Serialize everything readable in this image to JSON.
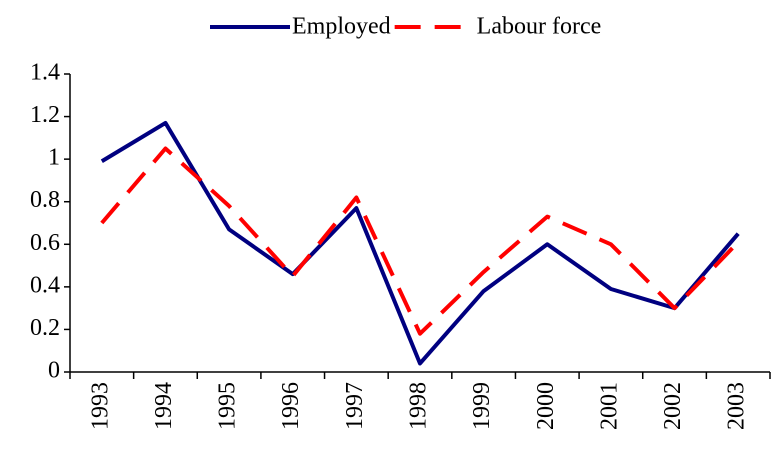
{
  "chart_data": {
    "type": "line",
    "categories": [
      "1993",
      "1994",
      "1995",
      "1996",
      "1997",
      "1998",
      "1999",
      "2000",
      "2001",
      "2002",
      "2003"
    ],
    "series": [
      {
        "name": "Employed",
        "color": "#000080",
        "dash": false,
        "values": [
          0.99,
          1.17,
          0.67,
          0.46,
          0.77,
          0.04,
          0.38,
          0.6,
          0.39,
          0.3,
          0.65
        ]
      },
      {
        "name": "Labour force",
        "color": "#ff0000",
        "dash": true,
        "values": [
          0.7,
          1.05,
          0.78,
          0.45,
          0.82,
          0.18,
          0.47,
          0.73,
          0.6,
          0.3,
          0.61
        ]
      }
    ],
    "ylim": [
      0,
      1.4
    ],
    "yticks": [
      0,
      0.2,
      0.4,
      0.6,
      0.8,
      1,
      1.2,
      1.4
    ],
    "grid": false,
    "legend": "top"
  }
}
